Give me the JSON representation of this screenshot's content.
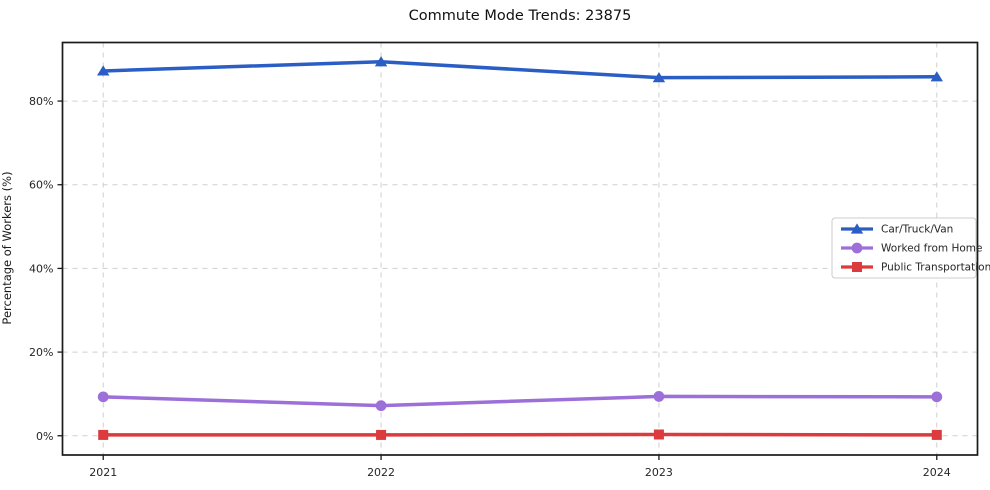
{
  "chart_data": {
    "type": "line",
    "title": "Commute Mode Trends: 23875",
    "xlabel": "",
    "ylabel": "Percentage of Workers (%)",
    "categories": [
      "2021",
      "2022",
      "2023",
      "2024"
    ],
    "series": [
      {
        "name": "Car/Truck/Van",
        "color": "#2a5ec4",
        "marker": "triangle",
        "values": [
          87.2,
          89.4,
          85.6,
          85.8
        ]
      },
      {
        "name": "Worked from Home",
        "color": "#9c70d8",
        "marker": "circle",
        "values": [
          9.3,
          7.2,
          9.4,
          9.3
        ]
      },
      {
        "name": "Public Transportation",
        "color": "#dc3a3c",
        "marker": "square",
        "values": [
          0.2,
          0.2,
          0.3,
          0.2
        ]
      }
    ],
    "yticks": [
      0,
      20,
      40,
      60,
      80
    ],
    "ytick_suffix": "%",
    "ylim": [
      -4.6,
      94.0
    ],
    "grid": true,
    "grid_style": "dashed",
    "legend_position": "center-right",
    "legend": [
      "Car/Truck/Van",
      "Worked from Home",
      "Public Transportation"
    ]
  },
  "style_colors": {
    "grid": "#cfcfcf",
    "spine": "#1a1a1a",
    "legend_border": "#cccccc",
    "tick_text": "#262626"
  }
}
